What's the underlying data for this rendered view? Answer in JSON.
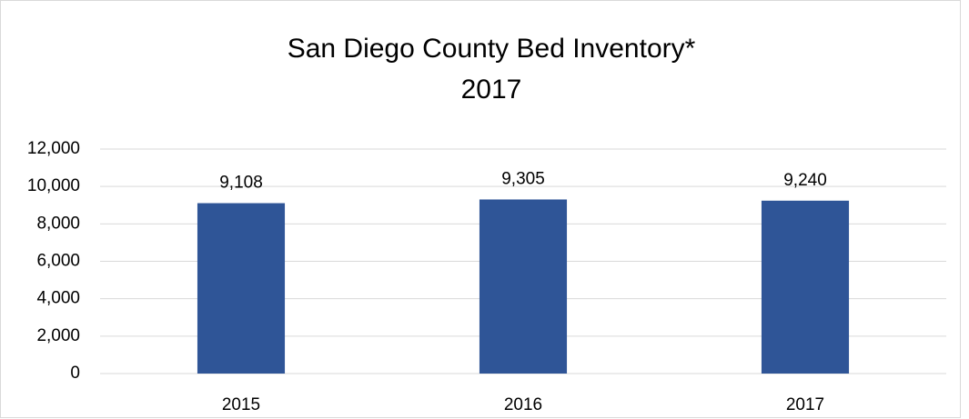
{
  "chart_data": {
    "type": "bar",
    "title": "San Diego County Bed Inventory*",
    "subtitle": "2017",
    "categories": [
      "2015",
      "2016",
      "2017"
    ],
    "values": [
      9108,
      9305,
      9240
    ],
    "value_labels": [
      "9,108",
      "9,305",
      "9,240"
    ],
    "color": "#2f5597",
    "ylim": [
      0,
      12000
    ],
    "yticks": [
      0,
      {
        "value": 2000,
        "label": "2,000"
      },
      {
        "value": 4000,
        "label": "4,000"
      },
      {
        "value": 6000,
        "label": "6,000"
      },
      {
        "value": 8000,
        "label": "8,000"
      },
      {
        "value": 10000,
        "label": "10,000"
      },
      {
        "value": 12000,
        "label": "12,000"
      }
    ],
    "grid": true
  }
}
